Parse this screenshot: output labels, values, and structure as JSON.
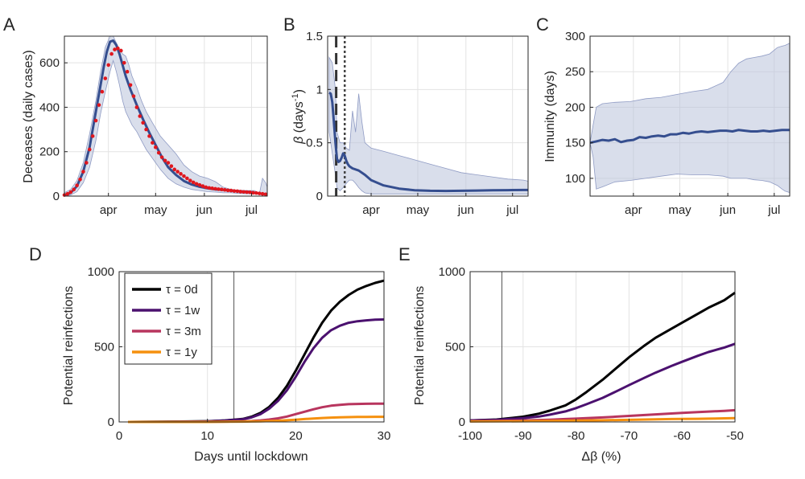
{
  "colors": {
    "band": "#b9c2db",
    "band_edge": "#8f9bc4",
    "model": "#354e8f",
    "data_points": "#e0171e",
    "grid": "#e3e3e3",
    "tau0": "#000000",
    "tau1w": "#4b116f",
    "tau3m": "#b8355e",
    "tau1y": "#f5900e"
  },
  "chart_data": [
    {
      "panel": "A",
      "type": "line",
      "ylabel": "Deceases (daily cases)",
      "xlabel": "",
      "x_unit": "day of year",
      "xlim": [
        64,
        193
      ],
      "ylim": [
        0,
        720
      ],
      "xticks": [
        92,
        122,
        153,
        183
      ],
      "xtick_labels": [
        "apr",
        "may",
        "jun",
        "jul"
      ],
      "yticks": [
        0,
        200,
        400,
        600
      ],
      "ytick_labels": [
        "0",
        "200",
        "400",
        "600"
      ],
      "grid": true,
      "band": {
        "x": [
          64,
          68,
          72,
          76,
          80,
          84,
          87,
          90,
          93,
          95,
          97,
          99,
          101,
          103,
          105,
          107,
          110,
          113,
          116,
          120,
          125,
          130,
          135,
          140,
          145,
          150,
          155,
          160,
          165,
          170,
          175,
          180,
          185,
          188,
          190,
          192,
          193
        ],
        "upper": [
          15,
          30,
          70,
          150,
          280,
          430,
          560,
          670,
          720,
          720,
          690,
          660,
          640,
          630,
          590,
          540,
          490,
          430,
          380,
          330,
          270,
          230,
          190,
          140,
          110,
          90,
          80,
          65,
          40,
          30,
          25,
          25,
          25,
          10,
          80,
          60,
          40
        ],
        "lower": [
          0,
          5,
          20,
          60,
          130,
          250,
          370,
          470,
          560,
          610,
          560,
          500,
          430,
          380,
          350,
          320,
          290,
          250,
          210,
          170,
          120,
          80,
          55,
          40,
          30,
          25,
          20,
          18,
          15,
          15,
          12,
          10,
          10,
          8,
          5,
          5,
          5
        ]
      },
      "model": {
        "x": [
          64,
          68,
          72,
          76,
          80,
          83,
          86,
          89,
          91,
          93,
          95,
          97,
          99,
          101,
          103,
          106,
          110,
          114,
          118,
          122,
          126,
          130,
          135,
          140,
          145,
          150,
          155,
          160,
          165,
          170,
          175,
          180,
          185,
          190,
          193
        ],
        "y": [
          5,
          15,
          45,
          110,
          220,
          340,
          460,
          580,
          650,
          695,
          700,
          680,
          640,
          590,
          540,
          480,
          410,
          345,
          285,
          230,
          175,
          130,
          95,
          68,
          52,
          42,
          35,
          30,
          28,
          25,
          22,
          20,
          15,
          10,
          8
        ]
      },
      "data_points": {
        "x": [
          64,
          66,
          68,
          70,
          72,
          74,
          76,
          78,
          80,
          82,
          84,
          86,
          88,
          90,
          92,
          94,
          96,
          98,
          100,
          102,
          104,
          106,
          108,
          110,
          112,
          114,
          116,
          118,
          120,
          122,
          124,
          126,
          128,
          130,
          132,
          134,
          136,
          138,
          140,
          142,
          144,
          146,
          148,
          150,
          152,
          154,
          156,
          158,
          160,
          162,
          164,
          166,
          168,
          170,
          172,
          174,
          176,
          178,
          180,
          182,
          184,
          186,
          188,
          190,
          192
        ],
        "y": [
          5,
          10,
          18,
          30,
          48,
          75,
          110,
          150,
          210,
          270,
          340,
          410,
          470,
          530,
          590,
          640,
          660,
          665,
          655,
          600,
          560,
          500,
          450,
          400,
          360,
          330,
          300,
          270,
          240,
          220,
          195,
          175,
          160,
          150,
          135,
          120,
          110,
          100,
          90,
          80,
          70,
          62,
          55,
          50,
          45,
          40,
          37,
          35,
          33,
          31,
          30,
          28,
          26,
          25,
          23,
          22,
          20,
          19,
          18,
          17,
          15,
          14,
          12,
          10,
          8
        ]
      }
    },
    {
      "panel": "B",
      "type": "line",
      "ylabel_parts": [
        "β",
        " (days",
        "-1",
        ")"
      ],
      "xlabel": "",
      "x_unit": "day of year",
      "xlim": [
        64,
        193
      ],
      "ylim": [
        0,
        1.5
      ],
      "xticks": [
        92,
        122,
        153,
        183
      ],
      "xtick_labels": [
        "apr",
        "may",
        "jun",
        "jul"
      ],
      "yticks": [
        0,
        0.5,
        1,
        1.5
      ],
      "ytick_labels": [
        "0",
        "0.5",
        "1",
        "1.5"
      ],
      "grid": true,
      "vlines": [
        {
          "x": 69.5,
          "style": "dashed"
        },
        {
          "x": 75,
          "style": "dotted"
        }
      ],
      "band": {
        "x": [
          65,
          67,
          69,
          70,
          72,
          74,
          76,
          78,
          80,
          82,
          84,
          86,
          88,
          92,
          100,
          110,
          120,
          130,
          140,
          150,
          160,
          170,
          180,
          190,
          193
        ],
        "upper": [
          1.3,
          1.25,
          1.0,
          0.6,
          0.5,
          0.5,
          0.45,
          0.43,
          0.8,
          0.6,
          0.96,
          0.7,
          0.5,
          0.45,
          0.42,
          0.38,
          0.34,
          0.3,
          0.26,
          0.22,
          0.2,
          0.18,
          0.16,
          0.15,
          0.14
        ],
        "lower": [
          0.6,
          0.4,
          0.2,
          0.08,
          0.05,
          0.08,
          0.12,
          0.15,
          0.15,
          0.12,
          0.08,
          0.05,
          0.03,
          0.02,
          0.02,
          0.02,
          0.02,
          0.02,
          0.02,
          0.02,
          0.02,
          0.02,
          0.02,
          0.02,
          0.02
        ]
      },
      "model": {
        "x": [
          65,
          66,
          67,
          68,
          69,
          70,
          71,
          72,
          73,
          74,
          75,
          76,
          77,
          78,
          80,
          84,
          88,
          92,
          100,
          110,
          120,
          130,
          140,
          150,
          160,
          170,
          180,
          190,
          193
        ],
        "y": [
          0.97,
          0.96,
          0.88,
          0.7,
          0.5,
          0.35,
          0.32,
          0.33,
          0.36,
          0.4,
          0.38,
          0.33,
          0.3,
          0.28,
          0.26,
          0.24,
          0.2,
          0.15,
          0.1,
          0.07,
          0.055,
          0.05,
          0.048,
          0.05,
          0.052,
          0.055,
          0.056,
          0.057,
          0.057
        ]
      }
    },
    {
      "panel": "C",
      "type": "line",
      "ylabel": "Immunity (days)",
      "xlabel": "",
      "x_unit": "day of year",
      "xlim": [
        64,
        193
      ],
      "ylim": [
        75,
        300
      ],
      "xticks": [
        92,
        122,
        153,
        183
      ],
      "xtick_labels": [
        "apr",
        "may",
        "jun",
        "jul"
      ],
      "yticks": [
        100,
        150,
        200,
        250,
        300
      ],
      "ytick_labels": [
        "100",
        "150",
        "200",
        "250",
        "300"
      ],
      "grid": true,
      "band": {
        "x": [
          64,
          66,
          68,
          72,
          80,
          90,
          100,
          110,
          120,
          130,
          140,
          150,
          155,
          160,
          165,
          170,
          175,
          180,
          185,
          188,
          190,
          193
        ],
        "upper": [
          150,
          175,
          200,
          205,
          207,
          208,
          212,
          214,
          218,
          222,
          225,
          235,
          250,
          262,
          268,
          270,
          272,
          275,
          284,
          286,
          287,
          290
        ],
        "lower": [
          150,
          130,
          85,
          88,
          95,
          97,
          100,
          103,
          106,
          105,
          105,
          103,
          100,
          100,
          100,
          98,
          97,
          95,
          90,
          85,
          82,
          80
        ]
      },
      "model": {
        "x": [
          64,
          68,
          72,
          76,
          80,
          84,
          88,
          92,
          96,
          100,
          104,
          108,
          112,
          116,
          120,
          124,
          128,
          132,
          136,
          140,
          144,
          148,
          152,
          156,
          160,
          164,
          168,
          172,
          176,
          180,
          184,
          188,
          193
        ],
        "y": [
          150,
          152,
          154,
          153,
          155,
          151,
          153,
          154,
          158,
          157,
          159,
          160,
          159,
          162,
          162,
          164,
          163,
          165,
          166,
          165,
          166,
          167,
          167,
          166,
          168,
          167,
          166,
          166,
          167,
          166,
          167,
          168,
          168
        ]
      }
    },
    {
      "panel": "D",
      "type": "line",
      "xlabel": "Days until lockdown",
      "ylabel": "Potential reinfections",
      "xlim": [
        0,
        30
      ],
      "ylim": [
        0,
        1000
      ],
      "xticks": [
        0,
        10,
        20,
        30
      ],
      "xtick_labels": [
        "0",
        "10",
        "20",
        "30"
      ],
      "yticks": [
        0,
        500,
        1000
      ],
      "ytick_labels": [
        "0",
        "500",
        "1000"
      ],
      "grid": true,
      "vlines": [
        {
          "x": 13,
          "style": "solid"
        }
      ],
      "x": [
        1,
        5,
        10,
        12,
        14,
        15,
        16,
        17,
        18,
        19,
        20,
        21,
        22,
        23,
        24,
        25,
        26,
        27,
        28,
        29,
        30
      ],
      "series": [
        {
          "name": "τ = 0d",
          "values": [
            0,
            1,
            5,
            10,
            20,
            35,
            60,
            100,
            160,
            240,
            340,
            450,
            560,
            660,
            740,
            800,
            845,
            880,
            905,
            925,
            940
          ]
        },
        {
          "name": "τ = 1w",
          "values": [
            0,
            1,
            4,
            9,
            18,
            30,
            52,
            88,
            140,
            210,
            300,
            400,
            490,
            560,
            610,
            640,
            660,
            670,
            676,
            680,
            682
          ]
        },
        {
          "name": "τ = 3m",
          "values": [
            0,
            0,
            1,
            2,
            4,
            6,
            10,
            16,
            24,
            36,
            52,
            68,
            84,
            98,
            108,
            114,
            118,
            120,
            121,
            122,
            122
          ]
        },
        {
          "name": "τ = 1y",
          "values": [
            0,
            0,
            0,
            1,
            2,
            3,
            4,
            6,
            8,
            11,
            15,
            19,
            23,
            26,
            29,
            31,
            32,
            33,
            33,
            34,
            34
          ]
        }
      ],
      "legend": {
        "position": "top-left"
      }
    },
    {
      "panel": "E",
      "type": "line",
      "xlabel_parts": [
        "Δβ",
        " (%)"
      ],
      "ylabel": "Potential reinfections",
      "xlim": [
        -100,
        -50
      ],
      "ylim": [
        0,
        1000
      ],
      "xticks": [
        -100,
        -90,
        -80,
        -70,
        -60,
        -50
      ],
      "xtick_labels": [
        "-100",
        "-90",
        "-80",
        "-70",
        "-60",
        "-50"
      ],
      "yticks": [
        0,
        500,
        1000
      ],
      "ytick_labels": [
        "0",
        "500",
        "1000"
      ],
      "grid": true,
      "vlines": [
        {
          "x": -94,
          "style": "solid"
        }
      ],
      "x": [
        -100,
        -95,
        -90,
        -87,
        -85,
        -82,
        -80,
        -78,
        -75,
        -72,
        -70,
        -67,
        -65,
        -62,
        -60,
        -57,
        -55,
        -52,
        -50
      ],
      "series": [
        {
          "name": "τ = 0d",
          "values": [
            10,
            16,
            35,
            55,
            75,
            110,
            150,
            200,
            280,
            370,
            430,
            510,
            560,
            620,
            660,
            720,
            760,
            810,
            860
          ]
        },
        {
          "name": "τ = 1w",
          "values": [
            10,
            14,
            25,
            36,
            48,
            70,
            92,
            118,
            160,
            210,
            245,
            295,
            328,
            372,
            400,
            440,
            465,
            495,
            520
          ]
        },
        {
          "name": "τ = 3m",
          "values": [
            5,
            7,
            10,
            13,
            15,
            19,
            22,
            25,
            30,
            36,
            40,
            46,
            50,
            56,
            60,
            65,
            69,
            74,
            78
          ]
        },
        {
          "name": "τ = 1y",
          "values": [
            3,
            4,
            5,
            6,
            7,
            8,
            9,
            10,
            11,
            13,
            14,
            16,
            17,
            19,
            20,
            21,
            22,
            24,
            25
          ]
        }
      ]
    }
  ]
}
